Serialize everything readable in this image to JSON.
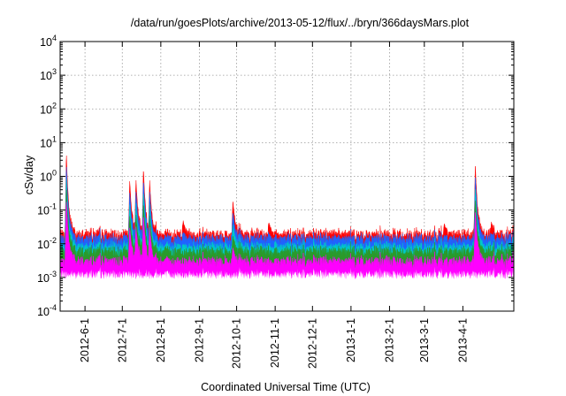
{
  "chart_data": {
    "type": "area",
    "title": "/data/run/goesPlots/archive/2013-05-12/flux/../bryn/366daysMars.plot",
    "xlabel": "Coordinated Universal Time (UTC)",
    "ylabel": "cSv/day",
    "yscale": "log",
    "ylim": [
      0.0001,
      10000
    ],
    "xlim": [
      "2012-05-12",
      "2013-05-12"
    ],
    "grid": true,
    "y_ticks": [
      {
        "value": 0.0001,
        "base": "10",
        "exp": "-4"
      },
      {
        "value": 0.001,
        "base": "10",
        "exp": "-3"
      },
      {
        "value": 0.01,
        "base": "10",
        "exp": "-2"
      },
      {
        "value": 0.1,
        "base": "10",
        "exp": "-1"
      },
      {
        "value": 1,
        "base": "10",
        "exp": "0"
      },
      {
        "value": 10,
        "base": "10",
        "exp": "1"
      },
      {
        "value": 100,
        "base": "10",
        "exp": "2"
      },
      {
        "value": 1000,
        "base": "10",
        "exp": "3"
      },
      {
        "value": 10000,
        "base": "10",
        "exp": "4"
      }
    ],
    "x_ticks": [
      {
        "date": "2012-06-01",
        "label": "2012-6-1"
      },
      {
        "date": "2012-07-01",
        "label": "2012-7-1"
      },
      {
        "date": "2012-08-01",
        "label": "2012-8-1"
      },
      {
        "date": "2012-09-01",
        "label": "2012-9-1"
      },
      {
        "date": "2012-10-01",
        "label": "2012-10-1"
      },
      {
        "date": "2012-11-01",
        "label": "2012-11-1"
      },
      {
        "date": "2012-12-01",
        "label": "2012-12-1"
      },
      {
        "date": "2013-01-01",
        "label": "2013-1-1"
      },
      {
        "date": "2013-02-01",
        "label": "2013-2-1"
      },
      {
        "date": "2013-03-01",
        "label": "2013-3-1"
      },
      {
        "date": "2013-04-01",
        "label": "2013-4-1"
      }
    ],
    "series": [
      {
        "color": "#ff0000",
        "baseline": 0.018
      },
      {
        "color": "#1e64ff",
        "baseline": 0.013
      },
      {
        "color": "#00c8c8",
        "baseline": 0.0075
      },
      {
        "color": "#2a9a2a",
        "baseline": 0.0055
      },
      {
        "color": "#ff00ff",
        "baseline": 0.0028
      }
    ],
    "events": [
      {
        "date": "2012-05-17",
        "peak": 5.5
      },
      {
        "date": "2012-07-07",
        "peak": 0.8
      },
      {
        "date": "2012-07-12",
        "peak": 0.9
      },
      {
        "date": "2012-07-18",
        "peak": 2.0
      },
      {
        "date": "2012-07-23",
        "peak": 0.8
      },
      {
        "date": "2012-08-19",
        "peak": 0.05
      },
      {
        "date": "2012-09-28",
        "peak": 0.2
      },
      {
        "date": "2012-10-27",
        "peak": 0.045
      },
      {
        "date": "2013-03-17",
        "peak": 0.04
      },
      {
        "date": "2013-04-11",
        "peak": 2.5
      },
      {
        "date": "2013-04-24",
        "peak": 0.045
      }
    ]
  }
}
